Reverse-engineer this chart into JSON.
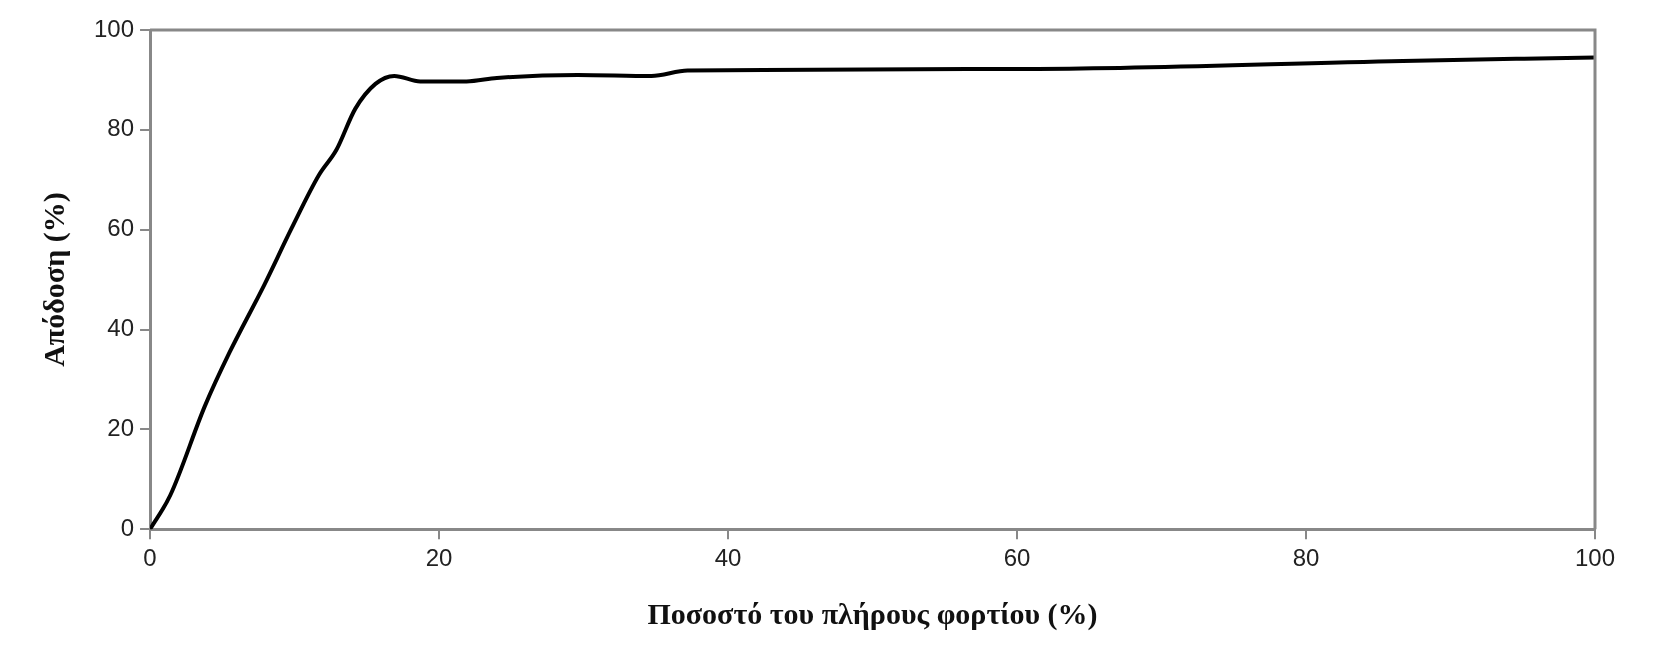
{
  "chart_data": {
    "type": "line",
    "xlabel": "Ποσοστό του πλήρους φορτίου (%)",
    "ylabel": "Απόδοση (%)",
    "x": [
      0,
      1.4,
      3.8,
      5.5,
      7.9,
      9.8,
      11.7,
      12.9,
      14.2,
      15.6,
      16.9,
      18.7,
      21.9,
      24.0,
      29.6,
      34.7,
      37.2,
      61.4,
      86.7,
      100
    ],
    "series": [
      {
        "color": "#000000",
        "values": [
          0,
          6.8,
          24.7,
          35.4,
          48.9,
          60.3,
          71,
          76,
          84.2,
          89.2,
          90.8,
          89.7,
          89.7,
          90.4,
          91,
          90.8,
          91.9,
          92.2,
          93.8,
          94.5
        ]
      }
    ],
    "xlim": [
      0,
      100
    ],
    "xticks": [
      0,
      20,
      40,
      60,
      80,
      100
    ],
    "ylim": [
      0,
      100
    ],
    "yticks": [
      0,
      20,
      40,
      60,
      80,
      100
    ],
    "grid": false,
    "legend": false,
    "marker": "none",
    "line_style": "solid"
  }
}
